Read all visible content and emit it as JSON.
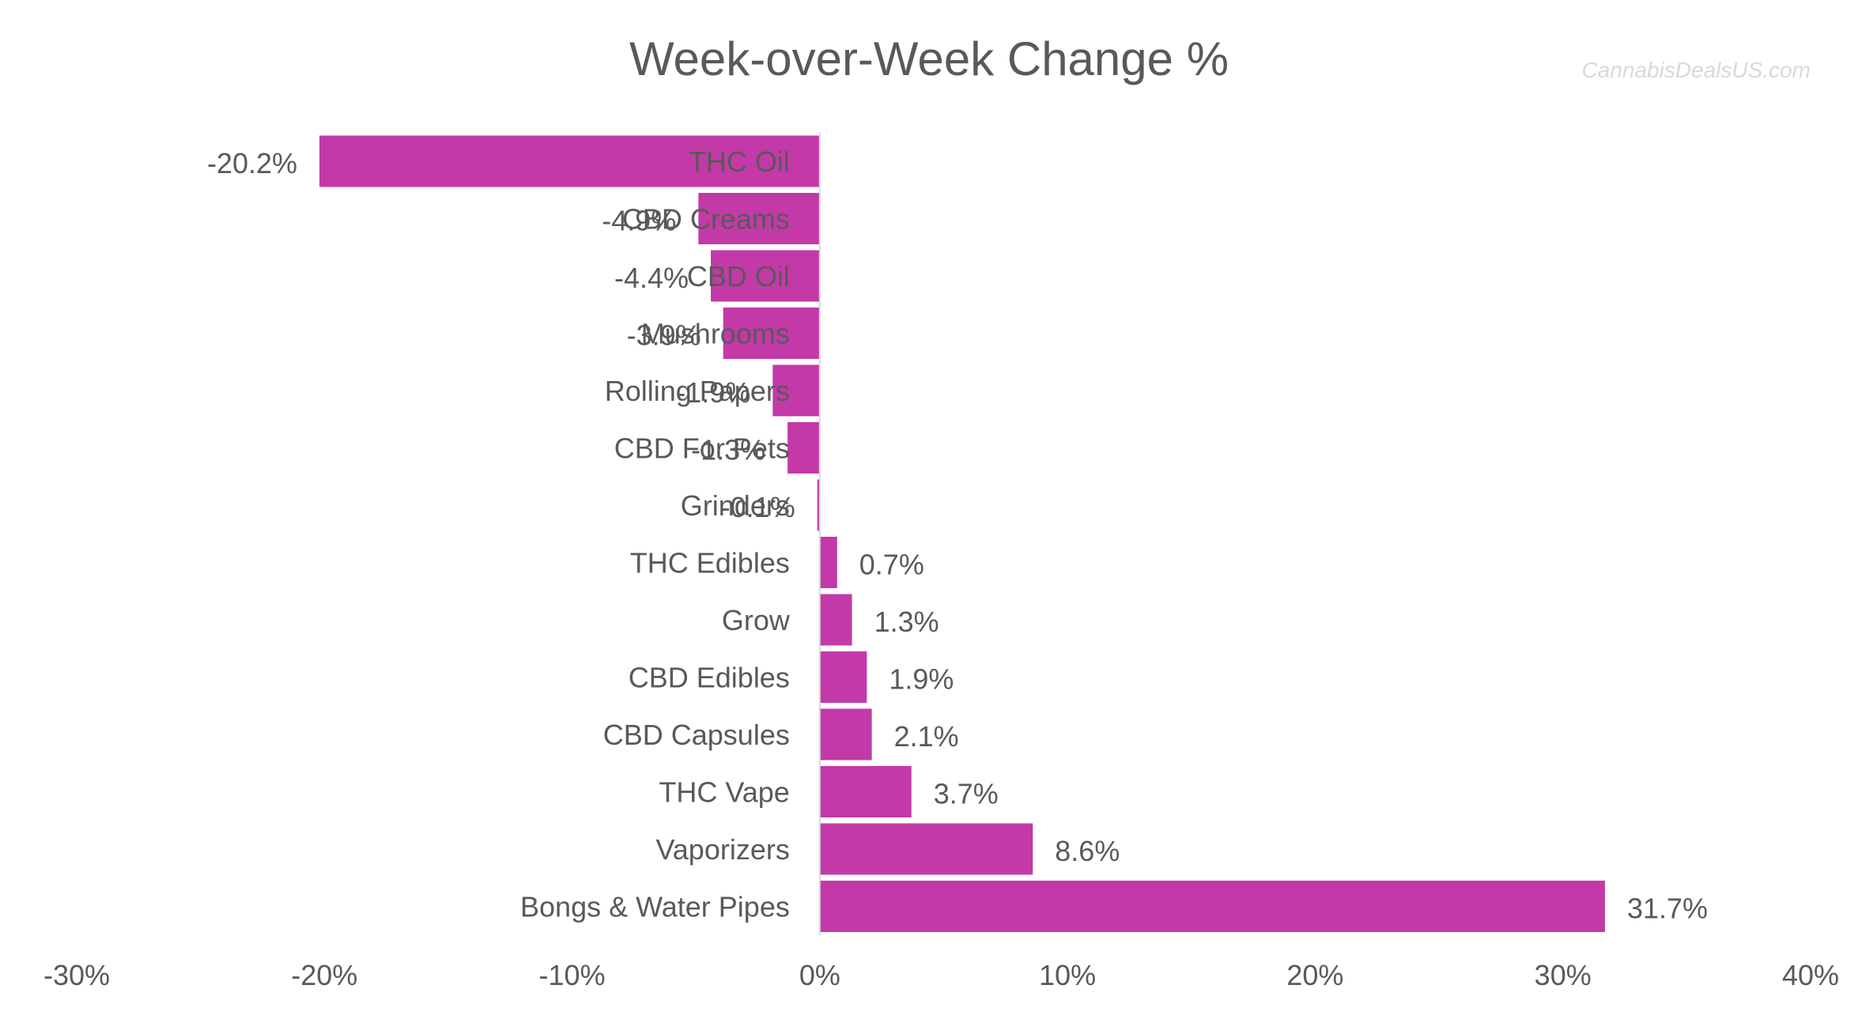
{
  "watermark": "CannabisDealsUS.com",
  "chart_data": {
    "type": "bar",
    "orientation": "horizontal",
    "title": "Week-over-Week Change %",
    "xlabel": "",
    "ylabel": "",
    "xlim": [
      -30,
      40
    ],
    "x_ticks": [
      "-30%",
      "-20%",
      "-10%",
      "0%",
      "10%",
      "20%",
      "30%",
      "40%"
    ],
    "x_tick_values": [
      -30,
      -20,
      -10,
      0,
      10,
      20,
      30,
      40
    ],
    "grid": false,
    "legend": "none",
    "bar_color": "#C339A8",
    "categories": [
      "THC Oil",
      "CBD Creams",
      "CBD Oil",
      "Mushrooms",
      "Rolling Papers",
      "CBD For Pets",
      "Grinders",
      "THC Edibles",
      "Grow",
      "CBD Edibles",
      "CBD Capsules",
      "THC Vape",
      "Vaporizers",
      "Bongs & Water Pipes"
    ],
    "values": [
      -20.2,
      -4.9,
      -4.4,
      -3.9,
      -1.9,
      -1.3,
      -0.1,
      0.7,
      1.3,
      1.9,
      2.1,
      3.7,
      8.6,
      31.7
    ],
    "value_labels": [
      "-20.2%",
      "-4.9%",
      "-4.4%",
      "-3.9%",
      "-1.9%",
      "-1.3%",
      "-0.1%",
      "0.7%",
      "1.3%",
      "1.9%",
      "2.1%",
      "3.7%",
      "8.6%",
      "31.7%"
    ]
  }
}
